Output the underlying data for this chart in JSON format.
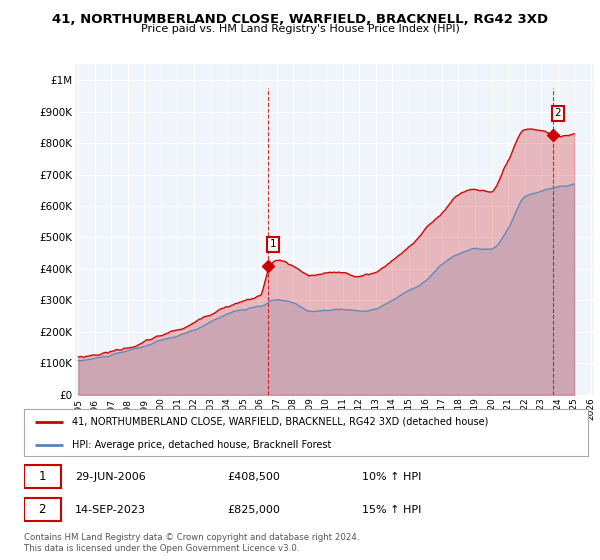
{
  "title": "41, NORTHUMBERLAND CLOSE, WARFIELD, BRACKNELL, RG42 3XD",
  "subtitle": "Price paid vs. HM Land Registry's House Price Index (HPI)",
  "legend_line1": "41, NORTHUMBERLAND CLOSE, WARFIELD, BRACKNELL, RG42 3XD (detached house)",
  "legend_line2": "HPI: Average price, detached house, Bracknell Forest",
  "footnote": "Contains HM Land Registry data © Crown copyright and database right 2024.\nThis data is licensed under the Open Government Licence v3.0.",
  "annotation1_label": "1",
  "annotation1_date": "29-JUN-2006",
  "annotation1_price": "£408,500",
  "annotation1_hpi": "10% ↑ HPI",
  "annotation2_label": "2",
  "annotation2_date": "14-SEP-2023",
  "annotation2_price": "£825,000",
  "annotation2_hpi": "15% ↑ HPI",
  "sale1_x": 2006.5,
  "sale1_y": 408500,
  "sale2_x": 2023.7,
  "sale2_y": 825000,
  "price_line_color": "#cc0000",
  "hpi_line_color": "#5588bb",
  "hpi_fill_color": "#cce0f0",
  "background_color": "#ffffff",
  "plot_bg_color": "#f0f5fb",
  "grid_color": "#ffffff",
  "ylim": [
    0,
    1050000
  ],
  "xlim": [
    1994.8,
    2026.2
  ],
  "yticks": [
    0,
    100000,
    200000,
    300000,
    400000,
    500000,
    600000,
    700000,
    800000,
    900000,
    1000000
  ],
  "ytick_labels": [
    "£0",
    "£100K",
    "£200K",
    "£300K",
    "£400K",
    "£500K",
    "£600K",
    "£700K",
    "£800K",
    "£900K",
    "£1M"
  ],
  "xticks": [
    1995,
    1996,
    1997,
    1998,
    1999,
    2000,
    2001,
    2002,
    2003,
    2004,
    2005,
    2006,
    2007,
    2008,
    2009,
    2010,
    2011,
    2012,
    2013,
    2014,
    2015,
    2016,
    2017,
    2018,
    2019,
    2020,
    2021,
    2022,
    2023,
    2024,
    2025,
    2026
  ]
}
